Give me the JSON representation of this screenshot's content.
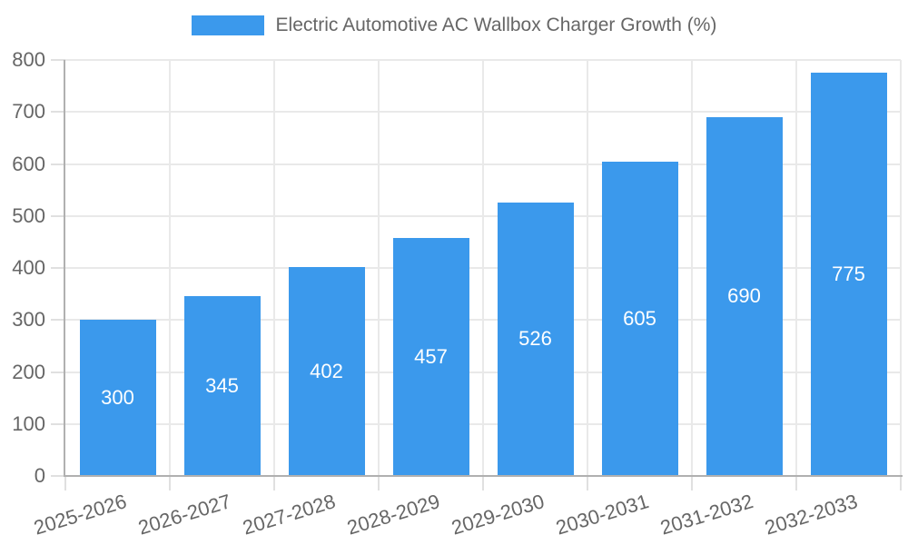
{
  "legend": {
    "label": "Electric Automotive AC Wallbox Charger Growth (%)"
  },
  "chart_data": {
    "type": "bar",
    "title": "Electric Automotive AC Wallbox Charger Growth (%)",
    "categories": [
      "2025-2026",
      "2026-2027",
      "2027-2028",
      "2028-2029",
      "2029-2030",
      "2030-2031",
      "2031-2032",
      "2032-2033"
    ],
    "values": [
      300,
      345,
      402,
      457,
      526,
      605,
      690,
      775
    ],
    "value_labels": [
      "300",
      "345",
      "402",
      "457",
      "526",
      "605",
      "690",
      "775"
    ],
    "yticks": [
      0,
      100,
      200,
      300,
      400,
      500,
      600,
      700,
      800
    ],
    "ylim": [
      0,
      800
    ],
    "xlabel": "",
    "ylabel": "",
    "grid": true,
    "legend_position": "top",
    "value_label_position": "center-inside-bar",
    "x_tick_label_rotation_deg": -17
  },
  "colors": {
    "bar": "#3B99EC",
    "barlabel": "#FFFFFF",
    "text": "#666666",
    "grid": "#E9E9E9",
    "tick": "#E0E0E0",
    "axis": "#B0B0B0"
  }
}
